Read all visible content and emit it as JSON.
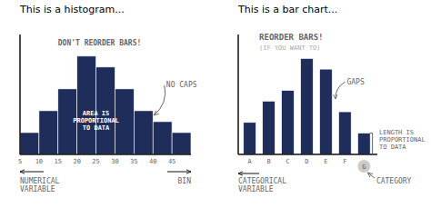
{
  "chart_data": [
    {
      "type": "histogram",
      "title": "This is a histogram...",
      "xlabel": "NUMERICAL\nVARIABLE",
      "bins": [
        5,
        10,
        15,
        20,
        25,
        30,
        35,
        40,
        45,
        50
      ],
      "values": [
        2,
        4,
        6,
        9,
        8,
        6,
        4,
        3,
        2
      ],
      "color": "#1e2d5a",
      "xlim": [
        5,
        50
      ],
      "xticks": [
        5,
        10,
        15,
        20,
        25,
        30,
        35,
        40,
        45
      ],
      "ylim": [
        0,
        10.98
      ],
      "tick_labels": "x",
      "grid": false,
      "annotations": [
        "DON'T REORDER BARS!",
        "NO CAPS",
        "AREA IS\nPROPORTIONAL\nTO DATA",
        "BIN"
      ]
    },
    {
      "type": "bar",
      "title": "This is a bar chart...",
      "xlabel": "CATEGORICAL\nVARIABLE",
      "categories": [
        "A",
        "B",
        "C",
        "D",
        "E",
        "F",
        "G"
      ],
      "values": [
        3,
        5,
        6,
        9,
        8,
        4,
        2
      ],
      "color": "#1e2d5a",
      "ylim": [
        0,
        11.25
      ],
      "tick_labels": "x",
      "grid": false,
      "annotations": [
        "REORDER BARS!",
        "(IF YOU WANT TO)",
        "GAPS",
        "LENGTH IS\nPROPORTIONAL\nTO DATA",
        "CATEGORY"
      ]
    }
  ]
}
